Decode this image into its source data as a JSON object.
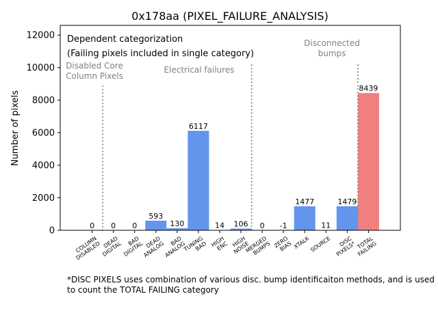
{
  "chart_data": {
    "type": "bar",
    "title": "0x178aa (PIXEL_FAILURE_ANALYSIS)",
    "xlabel": "",
    "ylabel": "Number of pixels",
    "ylim": [
      0,
      12600
    ],
    "yticks": [
      0,
      2000,
      4000,
      6000,
      8000,
      10000,
      12000
    ],
    "grid": false,
    "categories": [
      [
        "COLUMN",
        "DISABLED"
      ],
      [
        "DEAD",
        "DIGITAL"
      ],
      [
        "BAD",
        "DIGITAL"
      ],
      [
        "DEAD",
        "ANALOG"
      ],
      [
        "BAD",
        "ANALOG"
      ],
      [
        "TUNING",
        "BAD"
      ],
      [
        "HIGH",
        "ENC"
      ],
      [
        "HIGH",
        "NOISE"
      ],
      [
        "MERGED",
        "BUMPS"
      ],
      [
        "ZERO",
        "BIAS"
      ],
      [
        "XTALK"
      ],
      [
        "SOURCE"
      ],
      [
        "DISC",
        "PIXELS*"
      ],
      [
        "TOTAL",
        "FAILING"
      ]
    ],
    "values": [
      0,
      0,
      0,
      593,
      130,
      6117,
      14,
      106,
      0,
      -1,
      1477,
      11,
      1479,
      8439
    ],
    "value_labels": [
      "0",
      "0",
      "0",
      "593",
      "130",
      "6117",
      "14",
      "106",
      "0",
      "-1",
      "1477",
      "11",
      "1479",
      "8439"
    ],
    "colors": {
      "default": "#6495ed",
      "total": "#f08080",
      "divider": "#808080",
      "section_text": "#808080"
    },
    "dividers_after_index": [
      0,
      7,
      12
    ],
    "sections": [
      [
        "Disabled Core",
        "Column Pixels"
      ],
      [
        "Electrical failures"
      ],
      [
        "Disconnected",
        "bumps"
      ]
    ],
    "info_box": [
      "Dependent categorization",
      "(Failing pixels included in single category)"
    ],
    "footnote": "*DISC PIXELS uses combination of various disc. bump identificaiton methods, and is used to count the TOTAL FAILING category"
  }
}
